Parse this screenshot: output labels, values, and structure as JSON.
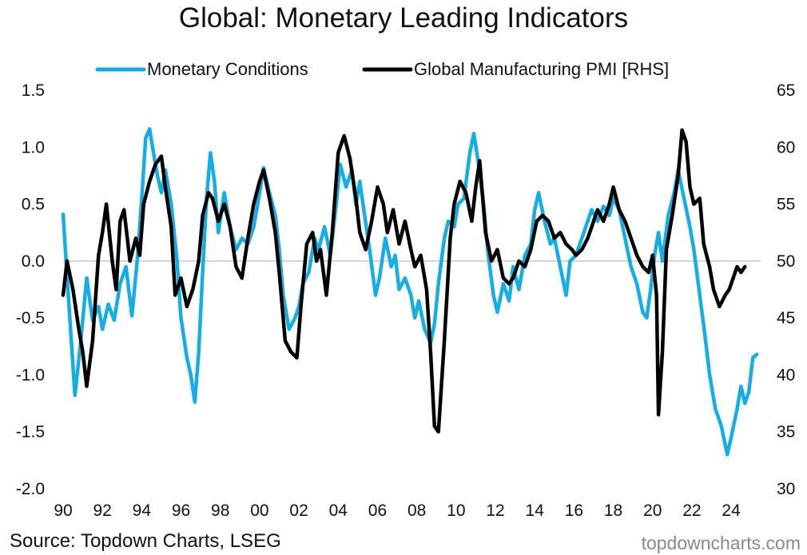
{
  "chart_data": {
    "type": "line",
    "title": "Global: Monetary Leading Indicators",
    "xlabel": "",
    "ylabel": "",
    "x_ticks": [
      "90",
      "92",
      "94",
      "96",
      "98",
      "00",
      "02",
      "04",
      "06",
      "08",
      "10",
      "12",
      "14",
      "16",
      "18",
      "20",
      "22",
      "24"
    ],
    "xlim": [
      1990,
      2025.5
    ],
    "ylim_left": [
      -2.0,
      1.5
    ],
    "ylim_right": [
      30,
      65
    ],
    "y_ticks_left": [
      "1.5",
      "1.0",
      "0.5",
      "0.0",
      "-0.5",
      "-1.0",
      "-1.5",
      "-2.0"
    ],
    "y_ticks_right": [
      "65",
      "60",
      "55",
      "50",
      "45",
      "40",
      "35",
      "30"
    ],
    "reference_line": 0,
    "legend_position": "top",
    "series": [
      {
        "name": "Monetary Conditions",
        "axis": "left",
        "color": "#14ADE4",
        "points": [
          [
            1990.0,
            0.41
          ],
          [
            1990.3,
            -0.4
          ],
          [
            1990.6,
            -1.18
          ],
          [
            1990.9,
            -0.7
          ],
          [
            1991.2,
            -0.15
          ],
          [
            1991.5,
            -0.52
          ],
          [
            1991.8,
            -0.4
          ],
          [
            1992.0,
            -0.6
          ],
          [
            1992.3,
            -0.38
          ],
          [
            1992.6,
            -0.52
          ],
          [
            1992.9,
            -0.2
          ],
          [
            1993.2,
            -0.05
          ],
          [
            1993.5,
            -0.48
          ],
          [
            1993.8,
            0.05
          ],
          [
            1994.0,
            0.55
          ],
          [
            1994.2,
            1.08
          ],
          [
            1994.4,
            1.16
          ],
          [
            1994.6,
            0.95
          ],
          [
            1994.8,
            0.75
          ],
          [
            1995.0,
            0.6
          ],
          [
            1995.2,
            0.8
          ],
          [
            1995.5,
            0.5
          ],
          [
            1995.8,
            0.0
          ],
          [
            1996.0,
            -0.5
          ],
          [
            1996.3,
            -0.85
          ],
          [
            1996.5,
            -1.0
          ],
          [
            1996.7,
            -1.24
          ],
          [
            1996.9,
            -0.8
          ],
          [
            1997.1,
            -0.1
          ],
          [
            1997.3,
            0.55
          ],
          [
            1997.5,
            0.95
          ],
          [
            1997.7,
            0.7
          ],
          [
            1997.9,
            0.25
          ],
          [
            1998.2,
            0.6
          ],
          [
            1998.5,
            0.3
          ],
          [
            1998.8,
            0.1
          ],
          [
            1999.1,
            0.2
          ],
          [
            1999.4,
            0.15
          ],
          [
            1999.7,
            0.3
          ],
          [
            2000.0,
            0.6
          ],
          [
            2000.2,
            0.82
          ],
          [
            2000.5,
            0.6
          ],
          [
            2000.8,
            0.4
          ],
          [
            2001.0,
            0.1
          ],
          [
            2001.2,
            -0.3
          ],
          [
            2001.5,
            -0.6
          ],
          [
            2001.8,
            -0.5
          ],
          [
            2002.0,
            -0.4
          ],
          [
            2002.2,
            -0.2
          ],
          [
            2002.5,
            -0.1
          ],
          [
            2002.8,
            0.2
          ],
          [
            2003.0,
            0.1
          ],
          [
            2003.3,
            0.3
          ],
          [
            2003.6,
            0.05
          ],
          [
            2003.9,
            0.5
          ],
          [
            2004.1,
            0.85
          ],
          [
            2004.4,
            0.65
          ],
          [
            2004.7,
            0.8
          ],
          [
            2004.9,
            0.5
          ],
          [
            2005.1,
            0.7
          ],
          [
            2005.3,
            0.45
          ],
          [
            2005.6,
            0.1
          ],
          [
            2005.9,
            -0.3
          ],
          [
            2006.1,
            -0.15
          ],
          [
            2006.4,
            0.2
          ],
          [
            2006.7,
            -0.05
          ],
          [
            2006.9,
            0.05
          ],
          [
            2007.1,
            -0.25
          ],
          [
            2007.4,
            -0.15
          ],
          [
            2007.7,
            -0.3
          ],
          [
            2007.9,
            -0.5
          ],
          [
            2008.1,
            -0.35
          ],
          [
            2008.4,
            -0.6
          ],
          [
            2008.7,
            -0.72
          ],
          [
            2008.9,
            -0.55
          ],
          [
            2009.1,
            -0.2
          ],
          [
            2009.4,
            0.2
          ],
          [
            2009.6,
            0.35
          ],
          [
            2009.9,
            0.3
          ],
          [
            2010.1,
            0.5
          ],
          [
            2010.4,
            0.55
          ],
          [
            2010.7,
            0.95
          ],
          [
            2010.9,
            1.12
          ],
          [
            2011.1,
            0.9
          ],
          [
            2011.4,
            0.5
          ],
          [
            2011.6,
            0.1
          ],
          [
            2011.9,
            -0.3
          ],
          [
            2012.1,
            -0.45
          ],
          [
            2012.4,
            -0.2
          ],
          [
            2012.7,
            -0.35
          ],
          [
            2012.9,
            -0.05
          ],
          [
            2013.2,
            -0.25
          ],
          [
            2013.5,
            0.05
          ],
          [
            2013.8,
            0.15
          ],
          [
            2014.0,
            0.45
          ],
          [
            2014.2,
            0.6
          ],
          [
            2014.5,
            0.35
          ],
          [
            2014.8,
            0.15
          ],
          [
            2015.0,
            0.2
          ],
          [
            2015.3,
            -0.05
          ],
          [
            2015.6,
            -0.3
          ],
          [
            2015.8,
            0.0
          ],
          [
            2016.1,
            0.05
          ],
          [
            2016.4,
            0.2
          ],
          [
            2016.7,
            0.35
          ],
          [
            2016.9,
            0.45
          ],
          [
            2017.2,
            0.35
          ],
          [
            2017.5,
            0.48
          ],
          [
            2017.8,
            0.4
          ],
          [
            2018.0,
            0.55
          ],
          [
            2018.3,
            0.45
          ],
          [
            2018.6,
            0.2
          ],
          [
            2018.9,
            -0.05
          ],
          [
            2019.2,
            -0.2
          ],
          [
            2019.5,
            -0.45
          ],
          [
            2019.7,
            -0.5
          ],
          [
            2019.9,
            -0.25
          ],
          [
            2020.1,
            0.05
          ],
          [
            2020.3,
            0.25
          ],
          [
            2020.5,
            0.0
          ],
          [
            2020.8,
            0.4
          ],
          [
            2021.1,
            0.6
          ],
          [
            2021.3,
            0.8
          ],
          [
            2021.6,
            0.55
          ],
          [
            2021.9,
            0.3
          ],
          [
            2022.1,
            0.1
          ],
          [
            2022.4,
            -0.3
          ],
          [
            2022.7,
            -0.7
          ],
          [
            2022.9,
            -1.0
          ],
          [
            2023.2,
            -1.3
          ],
          [
            2023.5,
            -1.45
          ],
          [
            2023.8,
            -1.7
          ],
          [
            2024.0,
            -1.55
          ],
          [
            2024.3,
            -1.3
          ],
          [
            2024.5,
            -1.1
          ],
          [
            2024.7,
            -1.25
          ],
          [
            2024.9,
            -1.15
          ],
          [
            2025.1,
            -0.85
          ],
          [
            2025.3,
            -0.82
          ]
        ]
      },
      {
        "name": "Global Manufacturing PMI [RHS]",
        "axis": "right",
        "color": "#000000",
        "points": [
          [
            1990.0,
            47.0
          ],
          [
            1990.2,
            50.0
          ],
          [
            1990.5,
            47.5
          ],
          [
            1990.8,
            44.0
          ],
          [
            1991.0,
            42.0
          ],
          [
            1991.2,
            39.0
          ],
          [
            1991.5,
            43.0
          ],
          [
            1991.8,
            50.5
          ],
          [
            1992.0,
            52.5
          ],
          [
            1992.2,
            55.0
          ],
          [
            1992.5,
            50.0
          ],
          [
            1992.7,
            47.5
          ],
          [
            1992.9,
            53.5
          ],
          [
            1993.1,
            54.5
          ],
          [
            1993.4,
            50.0
          ],
          [
            1993.7,
            52.0
          ],
          [
            1993.9,
            50.5
          ],
          [
            1994.1,
            55.0
          ],
          [
            1994.4,
            57.0
          ],
          [
            1994.7,
            58.5
          ],
          [
            1995.0,
            59.2
          ],
          [
            1995.2,
            56.5
          ],
          [
            1995.5,
            53.0
          ],
          [
            1995.7,
            47.0
          ],
          [
            1996.0,
            48.5
          ],
          [
            1996.3,
            46.0
          ],
          [
            1996.6,
            47.5
          ],
          [
            1996.9,
            50.0
          ],
          [
            1997.1,
            54.0
          ],
          [
            1997.4,
            56.0
          ],
          [
            1997.6,
            55.5
          ],
          [
            1997.9,
            53.5
          ],
          [
            1998.2,
            55.0
          ],
          [
            1998.5,
            53.0
          ],
          [
            1998.8,
            49.5
          ],
          [
            1999.1,
            48.5
          ],
          [
            1999.4,
            52.0
          ],
          [
            1999.7,
            55.0
          ],
          [
            2000.0,
            57.0
          ],
          [
            2000.2,
            58.0
          ],
          [
            2000.5,
            55.5
          ],
          [
            2000.8,
            52.5
          ],
          [
            2001.0,
            49.0
          ],
          [
            2001.3,
            43.0
          ],
          [
            2001.6,
            42.0
          ],
          [
            2001.9,
            41.5
          ],
          [
            2002.1,
            46.0
          ],
          [
            2002.4,
            51.5
          ],
          [
            2002.7,
            52.5
          ],
          [
            2002.9,
            50.0
          ],
          [
            2003.1,
            51.0
          ],
          [
            2003.4,
            47.0
          ],
          [
            2003.7,
            52.5
          ],
          [
            2004.0,
            59.5
          ],
          [
            2004.3,
            61.0
          ],
          [
            2004.6,
            59.0
          ],
          [
            2004.9,
            55.5
          ],
          [
            2005.1,
            52.5
          ],
          [
            2005.4,
            51.0
          ],
          [
            2005.7,
            53.5
          ],
          [
            2006.0,
            56.5
          ],
          [
            2006.3,
            55.0
          ],
          [
            2006.5,
            52.5
          ],
          [
            2006.8,
            54.5
          ],
          [
            2007.1,
            51.5
          ],
          [
            2007.4,
            53.5
          ],
          [
            2007.7,
            51.0
          ],
          [
            2007.9,
            49.5
          ],
          [
            2008.2,
            50.5
          ],
          [
            2008.5,
            47.5
          ],
          [
            2008.7,
            42.0
          ],
          [
            2008.9,
            35.5
          ],
          [
            2009.1,
            35.0
          ],
          [
            2009.4,
            43.0
          ],
          [
            2009.7,
            52.0
          ],
          [
            2009.9,
            55.0
          ],
          [
            2010.2,
            57.0
          ],
          [
            2010.5,
            56.0
          ],
          [
            2010.8,
            53.5
          ],
          [
            2011.0,
            56.5
          ],
          [
            2011.2,
            58.8
          ],
          [
            2011.5,
            52.5
          ],
          [
            2011.8,
            50.0
          ],
          [
            2012.1,
            51.0
          ],
          [
            2012.4,
            48.5
          ],
          [
            2012.7,
            48.0
          ],
          [
            2012.9,
            48.5
          ],
          [
            2013.2,
            50.0
          ],
          [
            2013.5,
            49.5
          ],
          [
            2013.8,
            51.0
          ],
          [
            2014.1,
            53.5
          ],
          [
            2014.4,
            54.0
          ],
          [
            2014.7,
            53.5
          ],
          [
            2015.0,
            52.0
          ],
          [
            2015.3,
            52.5
          ],
          [
            2015.6,
            51.5
          ],
          [
            2015.9,
            51.0
          ],
          [
            2016.1,
            50.5
          ],
          [
            2016.4,
            51.0
          ],
          [
            2016.7,
            52.0
          ],
          [
            2016.9,
            53.0
          ],
          [
            2017.2,
            54.5
          ],
          [
            2017.5,
            53.5
          ],
          [
            2017.8,
            55.0
          ],
          [
            2018.0,
            56.5
          ],
          [
            2018.3,
            54.5
          ],
          [
            2018.6,
            53.5
          ],
          [
            2018.9,
            52.0
          ],
          [
            2019.2,
            50.5
          ],
          [
            2019.5,
            49.5
          ],
          [
            2019.8,
            49.0
          ],
          [
            2020.0,
            50.5
          ],
          [
            2020.2,
            47.0
          ],
          [
            2020.3,
            36.5
          ],
          [
            2020.5,
            42.0
          ],
          [
            2020.7,
            51.0
          ],
          [
            2021.0,
            54.0
          ],
          [
            2021.3,
            57.5
          ],
          [
            2021.5,
            61.5
          ],
          [
            2021.7,
            60.5
          ],
          [
            2021.9,
            56.5
          ],
          [
            2022.1,
            55.0
          ],
          [
            2022.4,
            55.5
          ],
          [
            2022.6,
            51.5
          ],
          [
            2022.9,
            49.5
          ],
          [
            2023.1,
            47.5
          ],
          [
            2023.4,
            46.0
          ],
          [
            2023.7,
            47.0
          ],
          [
            2023.9,
            47.5
          ],
          [
            2024.1,
            48.5
          ],
          [
            2024.3,
            49.5
          ],
          [
            2024.5,
            49.0
          ],
          [
            2024.7,
            49.5
          ]
        ]
      }
    ]
  },
  "source_note": "Source: Topdown Charts, LSEG",
  "watermark": "topdowncharts.com"
}
